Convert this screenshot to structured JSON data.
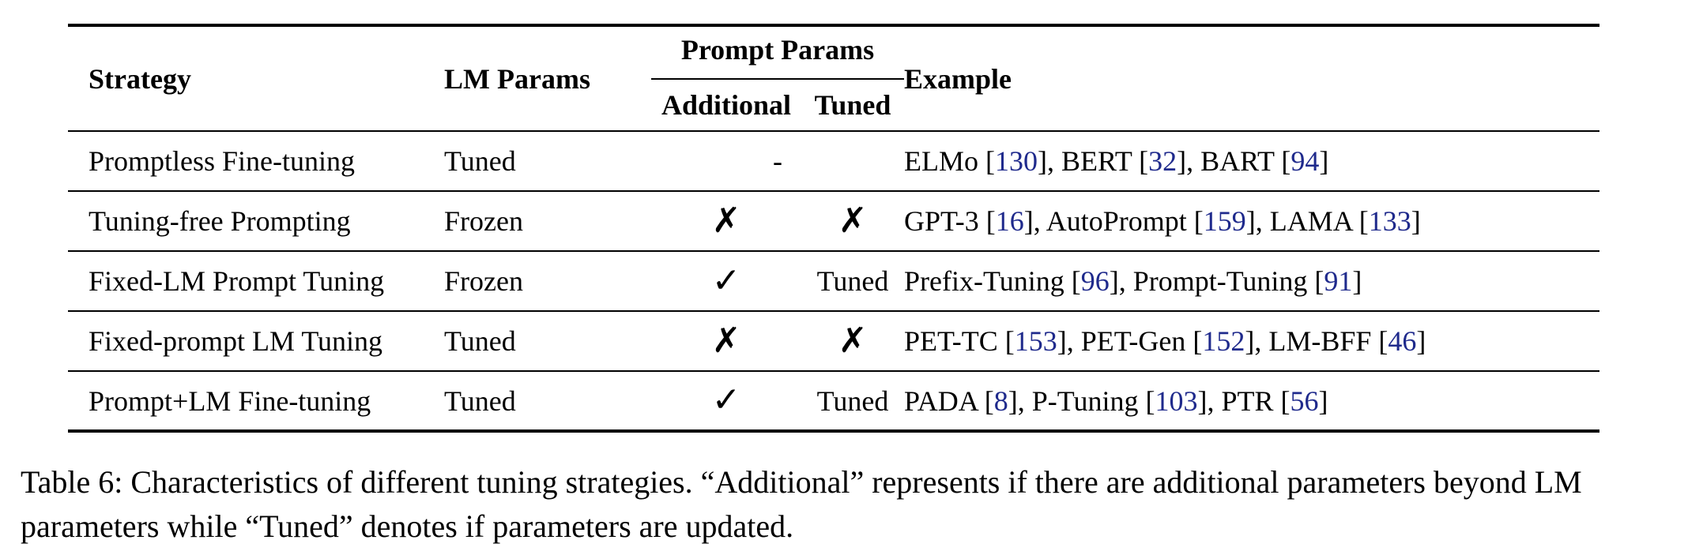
{
  "table": {
    "headers": {
      "strategy": "Strategy",
      "lm_params": "LM Params",
      "prompt_params": "Prompt Params",
      "additional": "Additional",
      "tuned": "Tuned",
      "example": "Example"
    },
    "rows": [
      {
        "strategy": "Promptless Fine-tuning",
        "lm_params": "Tuned",
        "prompt_params_merged": "-",
        "example": [
          {
            "text": "ELMo ["
          },
          {
            "ref": "130"
          },
          {
            "text": "], BERT ["
          },
          {
            "ref": "32"
          },
          {
            "text": "], BART ["
          },
          {
            "ref": "94"
          },
          {
            "text": "]"
          }
        ]
      },
      {
        "strategy": "Tuning-free Prompting",
        "lm_params": "Frozen",
        "additional": "✗",
        "tuned": "✗",
        "example": [
          {
            "text": "GPT-3 ["
          },
          {
            "ref": "16"
          },
          {
            "text": "], AutoPrompt ["
          },
          {
            "ref": "159"
          },
          {
            "text": "], LAMA ["
          },
          {
            "ref": "133"
          },
          {
            "text": "]"
          }
        ]
      },
      {
        "strategy": "Fixed-LM Prompt Tuning",
        "lm_params": "Frozen",
        "additional": "✓",
        "tuned": "Tuned",
        "example": [
          {
            "text": "Prefix-Tuning ["
          },
          {
            "ref": "96"
          },
          {
            "text": "], Prompt-Tuning ["
          },
          {
            "ref": "91"
          },
          {
            "text": "]"
          }
        ]
      },
      {
        "strategy": "Fixed-prompt LM Tuning",
        "lm_params": "Tuned",
        "additional": "✗",
        "tuned": "✗",
        "example": [
          {
            "text": "PET-TC ["
          },
          {
            "ref": "153"
          },
          {
            "text": "], PET-Gen ["
          },
          {
            "ref": "152"
          },
          {
            "text": "], LM-BFF ["
          },
          {
            "ref": "46"
          },
          {
            "text": "]"
          }
        ]
      },
      {
        "strategy": "Prompt+LM Fine-tuning",
        "lm_params": "Tuned",
        "additional": "✓",
        "tuned": "Tuned",
        "example": [
          {
            "text": "PADA ["
          },
          {
            "ref": "8"
          },
          {
            "text": "], P-Tuning ["
          },
          {
            "ref": "103"
          },
          {
            "text": "], PTR ["
          },
          {
            "ref": "56"
          },
          {
            "text": "]"
          }
        ]
      }
    ],
    "colors": {
      "reference": "#1f2a8c",
      "text": "#000000"
    }
  },
  "caption": "Table 6: Characteristics of different tuning strategies. “Additional” represents if there are additional parameters beyond LM parameters while “Tuned” denotes if parameters are updated."
}
